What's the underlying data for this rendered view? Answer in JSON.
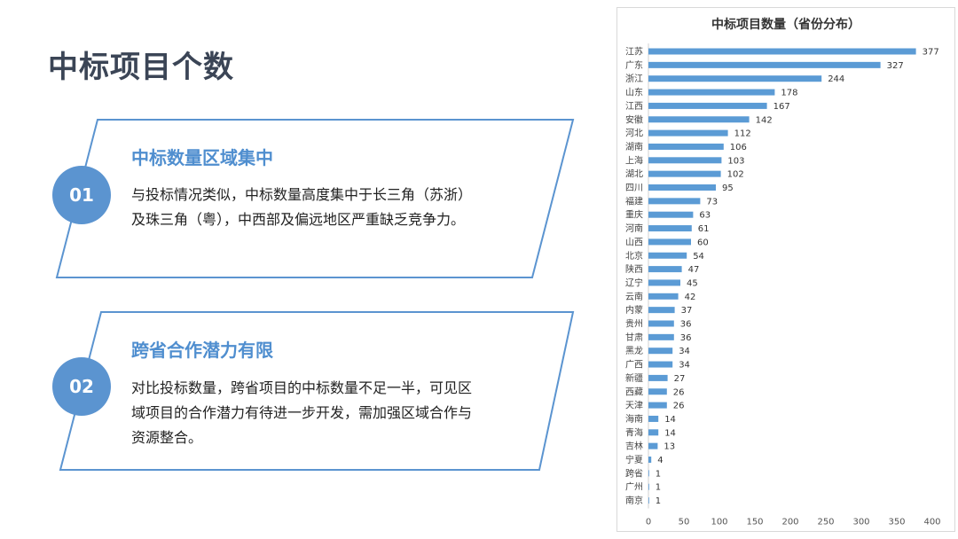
{
  "page": {
    "title": "中标项目个数"
  },
  "cards": [
    {
      "number": "01",
      "heading": "中标数量区域集中",
      "lines": [
        "与投标情况类似，中标数量高度集中于长三角（苏浙）",
        "及珠三角（粤），中西部及偏远地区严重缺乏竞争力。"
      ]
    },
    {
      "number": "02",
      "heading": "跨省合作潜力有限",
      "lines": [
        "对比投标数量，跨省项目的中标数量不足一半，可见区",
        "域项目的合作潜力有待进一步开发，需加强区域合作与",
        "资源整合。"
      ]
    }
  ],
  "colors": {
    "accent": "#5b94d0",
    "bar": "#5b9bd5",
    "title_text": "#3b4556"
  },
  "chart_data": {
    "type": "bar",
    "orientation": "horizontal",
    "title": "中标项目数量（省份分布）",
    "categories": [
      "江苏",
      "广东",
      "浙江",
      "山东",
      "江西",
      "安徽",
      "河北",
      "湖南",
      "上海",
      "湖北",
      "四川",
      "福建",
      "重庆",
      "河南",
      "山西",
      "北京",
      "陕西",
      "辽宁",
      "云南",
      "内蒙",
      "贵州",
      "甘肃",
      "黑龙",
      "广西",
      "新疆",
      "西藏",
      "天津",
      "海南",
      "青海",
      "吉林",
      "宁夏",
      "跨省",
      "广州",
      "南京"
    ],
    "values": [
      377,
      327,
      244,
      178,
      167,
      142,
      112,
      106,
      103,
      102,
      95,
      73,
      63,
      61,
      60,
      54,
      47,
      45,
      42,
      37,
      36,
      36,
      34,
      34,
      27,
      26,
      26,
      14,
      14,
      13,
      4,
      1,
      1,
      1
    ],
    "xlim": [
      0,
      400
    ],
    "xticks": [
      0,
      50,
      100,
      150,
      200,
      250,
      300,
      350,
      400
    ],
    "data_labels": true,
    "grid": false
  }
}
